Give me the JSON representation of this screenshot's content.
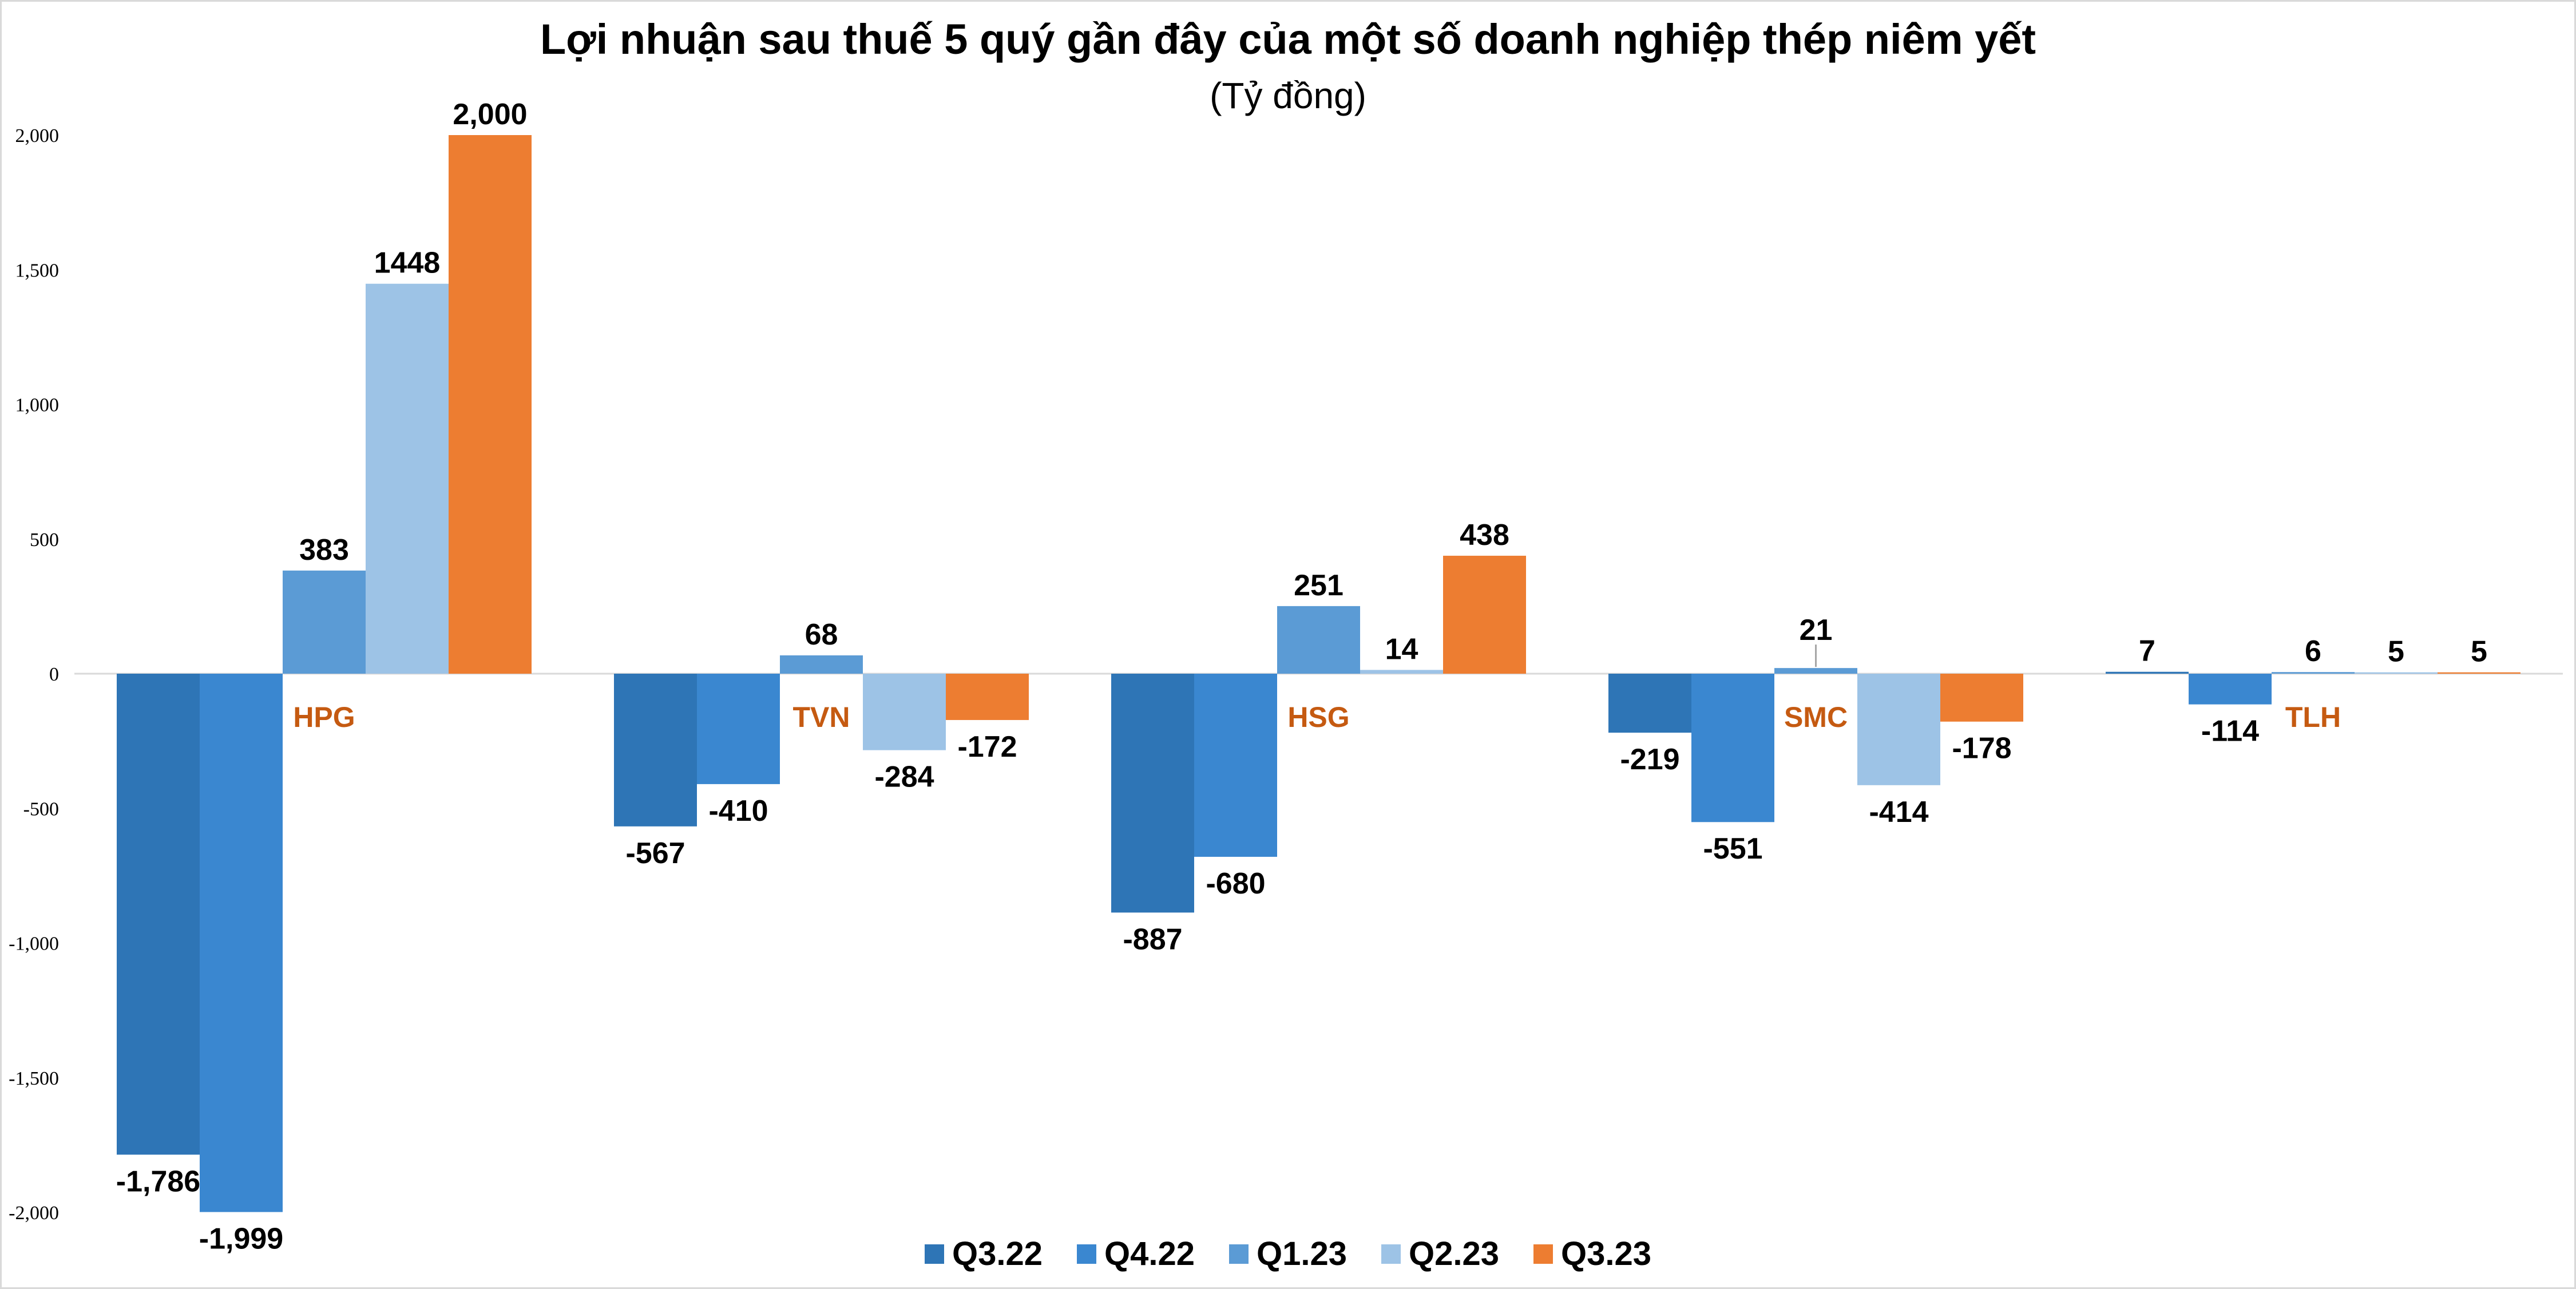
{
  "chart_data": {
    "type": "bar",
    "title": "Lợi nhuận sau thuế 5 quý gần đây của một số doanh nghiệp thép niêm yết",
    "subtitle": "(Tỷ đồng)",
    "categories": [
      "HPG",
      "TVN",
      "HSG",
      "SMC",
      "TLH"
    ],
    "category_label_color": "#C55A11",
    "series": [
      {
        "name": "Q3.22",
        "color": "#2E75B6",
        "values": [
          -1786,
          -567,
          -887,
          -219,
          7
        ],
        "labels": [
          "-1,786",
          "-567",
          "-887",
          "-219",
          "7"
        ]
      },
      {
        "name": "Q4.22",
        "color": "#3A87D0",
        "values": [
          -1999,
          -410,
          -680,
          -551,
          -114
        ],
        "labels": [
          "-1,999",
          "-410",
          "-680",
          "-551",
          "-114"
        ]
      },
      {
        "name": "Q1.23",
        "color": "#5B9BD5",
        "values": [
          383,
          68,
          251,
          21,
          6
        ],
        "labels": [
          "383",
          "68",
          "251",
          "21",
          "6"
        ]
      },
      {
        "name": "Q2.23",
        "color": "#9DC3E6",
        "values": [
          1448,
          -284,
          14,
          -414,
          5
        ],
        "labels": [
          "1448",
          "-284",
          "14",
          "-414",
          "5"
        ]
      },
      {
        "name": "Q3.23",
        "color": "#ED7D31",
        "values": [
          2000,
          -172,
          438,
          -178,
          5
        ],
        "labels": [
          "2,000",
          "-172",
          "438",
          "-178",
          "5"
        ]
      }
    ],
    "ylim": [
      -2000,
      2000
    ],
    "yticks": [
      2000,
      1500,
      1000,
      500,
      0,
      -500,
      -1000,
      -1500,
      -2000
    ],
    "ytick_labels": [
      "2,000",
      "1,500",
      "1,000",
      "500",
      "0",
      "-500",
      "-1,000",
      "-1,500",
      "-2,000"
    ],
    "grid": false,
    "legend_position": "bottom"
  }
}
